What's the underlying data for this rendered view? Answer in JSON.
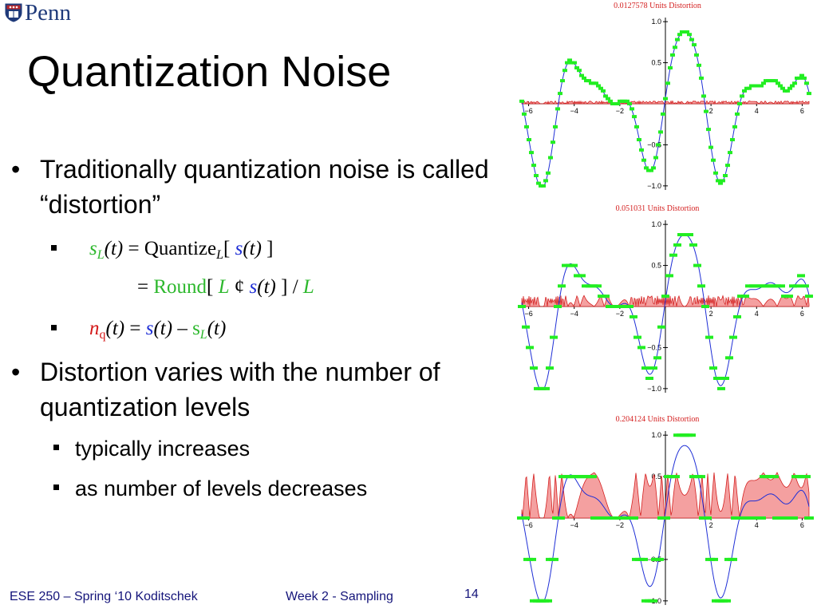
{
  "logo": {
    "text": "Penn"
  },
  "slide": {
    "title": "Quantization Noise",
    "bullets": [
      {
        "text": "Traditionally quantization noise is called “distortion”"
      },
      {
        "text": "Distortion varies with the number of quantization levels"
      }
    ],
    "formula1": {
      "lhs_s": "s",
      "lhs_sub": "L",
      "lhs_t": "(t)",
      "eq": "=",
      "op": "Quantize",
      "op_sub": "L",
      "open": "[",
      "arg_s": "s",
      "arg_t": "(t)",
      "close": "]"
    },
    "formula2": {
      "eq": "=",
      "round": "Round",
      "open": "[",
      "L1": "L",
      "cent": "¢",
      "s": "s",
      "t": "(t)",
      "close": "]",
      "slash": "/",
      "L2": "L"
    },
    "formula3": {
      "n": "n",
      "n_sub": "q",
      "t": "(t)",
      "eq": "=",
      "s": "s",
      "t2": "(t)",
      "minus": "–",
      "sL": "s",
      "sL_sub": "L",
      "t3": "(t)"
    },
    "sub_bullets": [
      "typically increases",
      "as number of levels decreases"
    ]
  },
  "footer": {
    "course": "ESE 250 – Spring ‘10  Koditschek",
    "week": "Week 2 - Sampling",
    "page": "14"
  },
  "colors": {
    "title_text": "#000000",
    "footer_text": "#14147a",
    "signal": "#1f2fd6",
    "quantized": "#22ee22",
    "error": "#d42020",
    "error_fill": "#f4a0a0",
    "penn_blue": "#1f3a7a"
  },
  "chart_data": [
    {
      "type": "line",
      "title": "0.0127578 Units Distortion",
      "x_ticks": [
        "−6",
        "−4",
        "−2",
        "2",
        "4",
        "6"
      ],
      "y_ticks": [
        "1.0",
        "0.5",
        "−0.5",
        "−1.0"
      ],
      "xlim": [
        -6.3,
        6.3
      ],
      "ylim": [
        -1.05,
        1.05
      ],
      "levels": 64,
      "series": [
        {
          "role": "signal",
          "color": "#1f2fd6"
        },
        {
          "role": "quantized",
          "color": "#22ee22"
        },
        {
          "role": "error",
          "color": "#d42020"
        }
      ]
    },
    {
      "type": "line",
      "title": "0.051031 Units Distortion",
      "x_ticks": [
        "−6",
        "−4",
        "−2",
        "2",
        "4",
        "6"
      ],
      "y_ticks": [
        "1.0",
        "0.5",
        "−0.5",
        "−1.0"
      ],
      "xlim": [
        -6.3,
        6.3
      ],
      "ylim": [
        -1.05,
        1.05
      ],
      "levels": 16,
      "series": [
        {
          "role": "signal",
          "color": "#1f2fd6"
        },
        {
          "role": "quantized",
          "color": "#22ee22"
        },
        {
          "role": "error",
          "color": "#d42020"
        }
      ]
    },
    {
      "type": "line",
      "title": "0.204124 Units Distortion",
      "x_ticks": [
        "−6",
        "−4",
        "−2",
        "2",
        "4",
        "6"
      ],
      "y_ticks": [
        "1.0",
        "0.5",
        "−0.5",
        "−1.0"
      ],
      "xlim": [
        -6.3,
        6.3
      ],
      "ylim": [
        -1.05,
        1.05
      ],
      "levels": 4,
      "series": [
        {
          "role": "signal",
          "color": "#1f2fd6"
        },
        {
          "role": "quantized",
          "color": "#22ee22"
        },
        {
          "role": "error",
          "color": "#d42020"
        }
      ]
    }
  ]
}
